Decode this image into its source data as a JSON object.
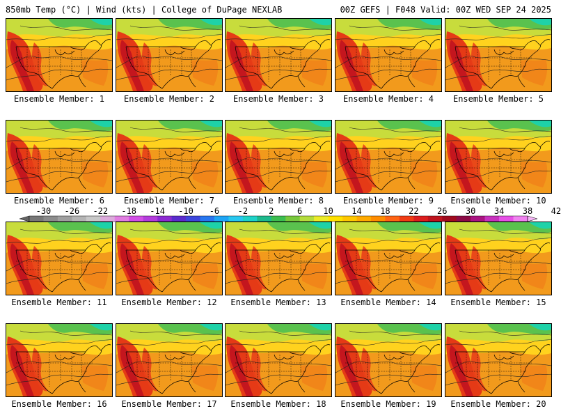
{
  "header": {
    "left": "850mb Temp (°C) | Wind (kts) | College of DuPage NEXLAB",
    "right": "00Z GEFS | F048 Valid: 00Z WED SEP 24 2025"
  },
  "panel_label_prefix": "Ensemble Member: ",
  "members": [
    1,
    2,
    3,
    4,
    5,
    6,
    7,
    8,
    9,
    10,
    11,
    12,
    13,
    14,
    15,
    16,
    17,
    18,
    19,
    20
  ],
  "colorbar": {
    "ticks": [
      "-30",
      "-26",
      "-22",
      "-18",
      "-14",
      "-10",
      "-6",
      "-2",
      "2",
      "6",
      "10",
      "14",
      "18",
      "22",
      "26",
      "30",
      "34",
      "38",
      "42"
    ],
    "colors": [
      "#646464",
      "#787878",
      "#8c8c8c",
      "#a0a0a0",
      "#b4b4b4",
      "#c8c8c8",
      "#dcaadc",
      "#e17ee1",
      "#d24fe6",
      "#b43cdc",
      "#8c2ad2",
      "#5a2ccd",
      "#3c46dc",
      "#2877f0",
      "#1ea5f5",
      "#28c8f0",
      "#1ed2c8",
      "#1eb98c",
      "#3cbe50",
      "#78c83c",
      "#b4dc3c",
      "#ebeb28",
      "#ffe100",
      "#ffc800",
      "#ffaa00",
      "#ff8c00",
      "#ff6414",
      "#f03c14",
      "#dc1e1e",
      "#be141e",
      "#a00a1e",
      "#8c0a46",
      "#aa1482",
      "#c832be",
      "#e650e6",
      "#f082f0",
      "#f5b4f5"
    ]
  }
}
